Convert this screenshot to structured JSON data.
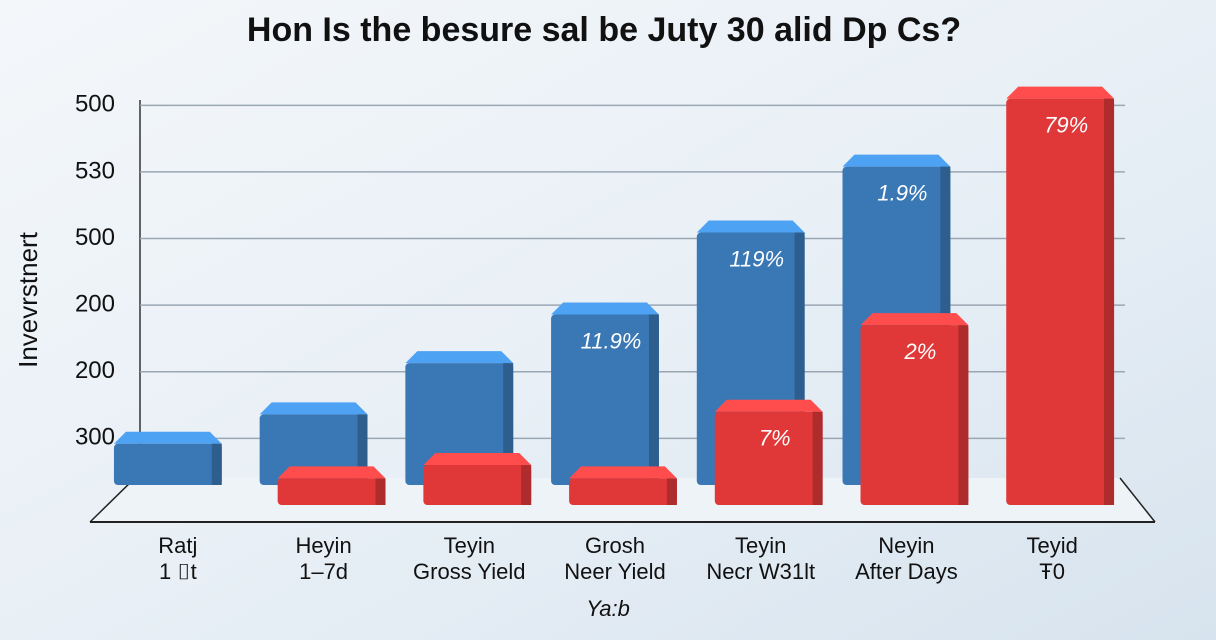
{
  "chart_data": {
    "type": "bar3d",
    "title": "Hon Is the besure sal be Juty 30 alid Dp Cs?",
    "ylabel": "Invevrstnert",
    "xlabel": "Ya:b",
    "categories": [
      [
        "Ratj",
        "1 ⌷t"
      ],
      [
        "Heyin",
        "1–7d"
      ],
      [
        "Teyin",
        "Gross Yield"
      ],
      [
        "Grosh",
        "Neer Yield"
      ],
      [
        "Teyin",
        "Necr W31lt"
      ],
      [
        "Neyin",
        "After Days"
      ],
      [
        "Teyid",
        "Ŧ0"
      ]
    ],
    "series": [
      {
        "name": "Blue",
        "color": "#3a78b5",
        "values": [
          0.62,
          1.06,
          1.83,
          2.56,
          3.79,
          4.78,
          null
        ],
        "value_labels": [
          null,
          null,
          null,
          "11.9%",
          "119%",
          "1.9%",
          null
        ]
      },
      {
        "name": "Red",
        "color": "#e03838",
        "values": [
          null,
          0.4,
          0.6,
          0.4,
          1.4,
          2.7,
          6.1
        ],
        "value_labels": [
          null,
          null,
          null,
          null,
          "7%",
          "2%",
          "79%"
        ]
      }
    ],
    "ylim": [
      0,
      6.2
    ],
    "yticks": [
      {
        "value": 1,
        "label": "300"
      },
      {
        "value": 2,
        "label": "200"
      },
      {
        "value": 3,
        "label": "200"
      },
      {
        "value": 4,
        "label": "500"
      },
      {
        "value": 5,
        "label": "530"
      },
      {
        "value": 6,
        "label": "500"
      }
    ],
    "grid": true
  }
}
